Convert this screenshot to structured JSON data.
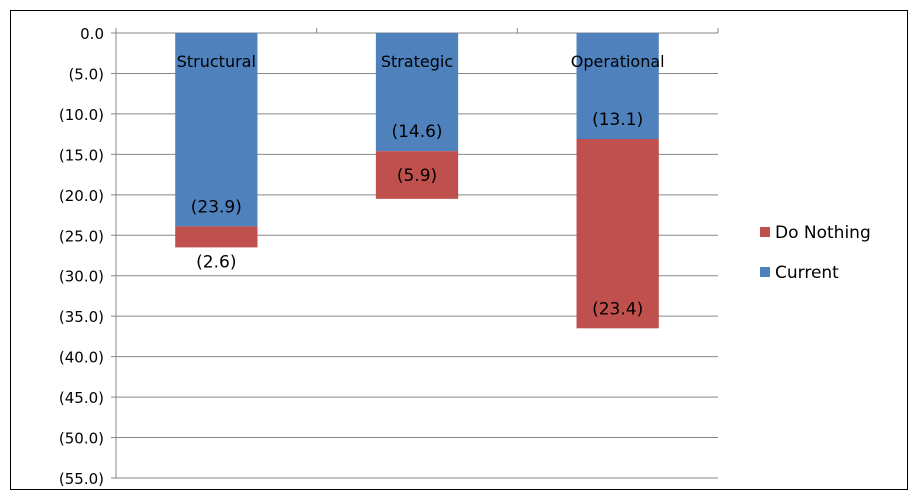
{
  "chart_data": {
    "type": "bar",
    "stacked": true,
    "categories": [
      "Structural",
      "Strategic",
      "Operational"
    ],
    "category_label_position": "top",
    "series": [
      {
        "name": "Current",
        "color": "#4f81bd",
        "values": [
          -23.9,
          -14.6,
          -13.1
        ],
        "data_labels": [
          "(23.9)",
          "(14.6)",
          "(13.1)"
        ]
      },
      {
        "name": "Do Nothing",
        "color": "#c0504d",
        "values": [
          -2.6,
          -5.9,
          -23.4
        ],
        "data_labels": [
          "(2.6)",
          "(5.9)",
          "(23.4)"
        ]
      }
    ],
    "y_ticks": [
      {
        "value": 0,
        "label": "0.0"
      },
      {
        "value": -5,
        "label": "(5.0)"
      },
      {
        "value": -10,
        "label": "(10.0)"
      },
      {
        "value": -15,
        "label": "(15.0)"
      },
      {
        "value": -20,
        "label": "(20.0)"
      },
      {
        "value": -25,
        "label": "(25.0)"
      },
      {
        "value": -30,
        "label": "(30.0)"
      },
      {
        "value": -35,
        "label": "(35.0)"
      },
      {
        "value": -40,
        "label": "(40.0)"
      },
      {
        "value": -45,
        "label": "(45.0)"
      },
      {
        "value": -50,
        "label": "(50.0)"
      },
      {
        "value": -55,
        "label": "(55.0)"
      }
    ],
    "ylim": [
      -55,
      0
    ],
    "grid": true,
    "legend": {
      "placement": "right",
      "entries": [
        {
          "label": "Do Nothing",
          "color": "#c0504d"
        },
        {
          "label": "Current",
          "color": "#4f81bd"
        }
      ]
    },
    "title": "",
    "xlabel": "",
    "ylabel": ""
  }
}
